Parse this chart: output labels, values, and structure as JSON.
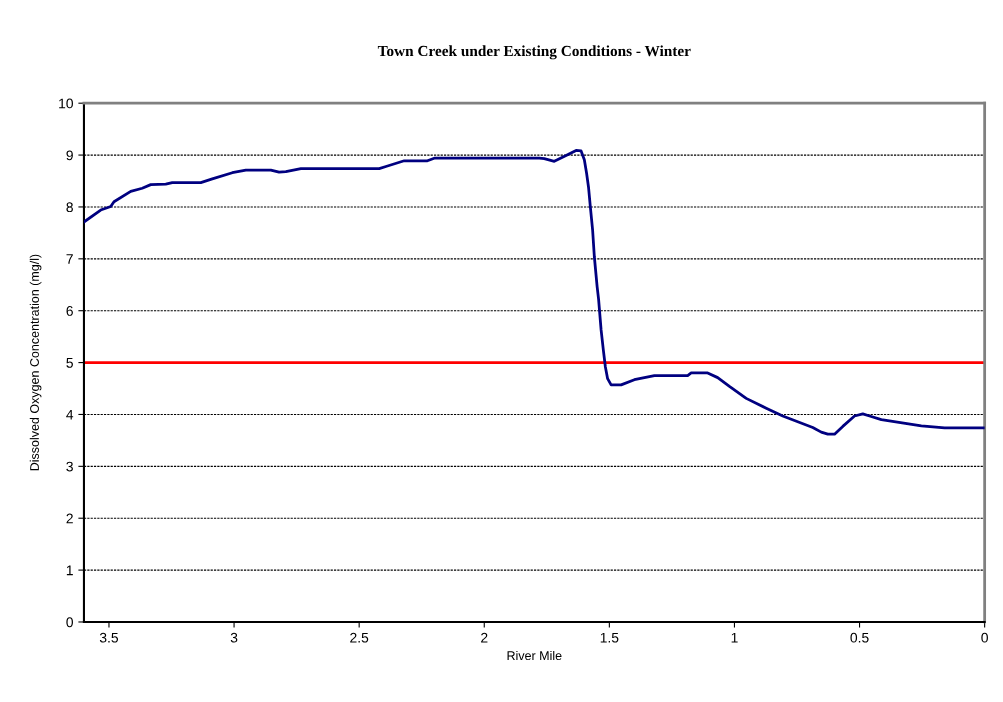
{
  "chart_data": {
    "type": "line",
    "title": "Town Creek under Existing Conditions - Winter",
    "xlabel": "River Mile",
    "ylabel": "Dissolved Oxygen Concentration (mg/l)",
    "series": [
      {
        "color": "#000080",
        "x": [
          3.6,
          3.533,
          3.493,
          3.48,
          3.413,
          3.367,
          3.333,
          3.273,
          3.247,
          3.133,
          3.087,
          3.007,
          2.953,
          2.853,
          2.82,
          2.793,
          2.733,
          2.42,
          2.393,
          2.32,
          2.227,
          2.2,
          1.78,
          1.76,
          1.72,
          1.673,
          1.633,
          1.613,
          1.6,
          1.591,
          1.583,
          1.576,
          1.567,
          1.56,
          1.549,
          1.543,
          1.533,
          1.524,
          1.516,
          1.507,
          1.493,
          1.453,
          1.4,
          1.32,
          1.187,
          1.173,
          1.107,
          1.067,
          1.02,
          0.953,
          0.873,
          0.807,
          0.687,
          0.653,
          0.627,
          0.6,
          0.567,
          0.52,
          0.487,
          0.46,
          0.413,
          0.253,
          0.16,
          0
        ],
        "values": [
          7.71,
          7.94,
          8.01,
          8.1,
          8.3,
          8.36,
          8.43,
          8.44,
          8.47,
          8.47,
          8.54,
          8.66,
          8.71,
          8.71,
          8.67,
          8.68,
          8.74,
          8.74,
          8.78,
          8.89,
          8.89,
          8.94,
          8.94,
          8.93,
          8.88,
          8.99,
          9.09,
          9.08,
          8.91,
          8.65,
          8.37,
          8.0,
          7.56,
          7.04,
          6.47,
          6.22,
          5.63,
          5.24,
          4.92,
          4.69,
          4.57,
          4.57,
          4.67,
          4.75,
          4.75,
          4.8,
          4.8,
          4.71,
          4.54,
          4.31,
          4.12,
          3.97,
          3.75,
          3.66,
          3.62,
          3.62,
          3.77,
          3.97,
          4.01,
          3.97,
          3.9,
          3.78,
          3.74,
          3.74
        ]
      }
    ],
    "xlim": [
      3.6,
      0
    ],
    "xticks": [
      {
        "value": 3.5,
        "label": "3.5"
      },
      3,
      {
        "value": 2.5,
        "label": "2.5"
      },
      2,
      {
        "value": 1.5,
        "label": "1.5"
      },
      1,
      {
        "value": 0.5,
        "label": "0.5"
      },
      0
    ],
    "ylim": [
      0,
      10
    ],
    "yticks": [
      0,
      1,
      2,
      3,
      4,
      5,
      6,
      7,
      8,
      9,
      10
    ],
    "grid": "y",
    "legend": false,
    "marker": "none",
    "line_style": "solid",
    "ref_lines": [
      {
        "axis": "y",
        "value": 5,
        "color": "#ff0000",
        "line_style": "solid"
      }
    ]
  }
}
